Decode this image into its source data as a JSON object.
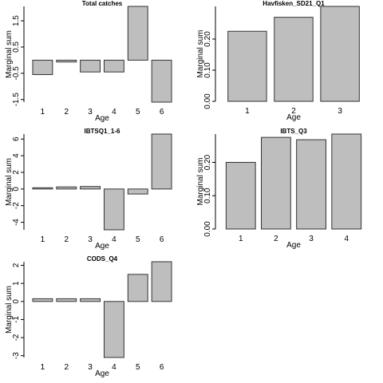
{
  "colors": {
    "bar_fill": "#bebebe",
    "bar_edge": "#333333",
    "axis": "#000000",
    "background": "#ffffff"
  },
  "chart_data": [
    {
      "type": "bar",
      "title": "Total catches",
      "xlabel": "Age",
      "ylabel": "Marginal sum",
      "categories": [
        "1",
        "2",
        "3",
        "4",
        "5",
        "6"
      ],
      "values": [
        -0.55,
        -0.07,
        -0.45,
        -0.45,
        2.05,
        -1.6
      ],
      "yticks": [
        -1.5,
        -0.5,
        0.5,
        1.5
      ],
      "yticklabels": [
        "-1.5",
        "-0.5",
        "0.5",
        "1.5"
      ],
      "ylim": [
        -1.6,
        2.05
      ]
    },
    {
      "type": "bar",
      "title": "Havfisken_SD21_Q1",
      "xlabel": "Age",
      "ylabel": "Marginal sum",
      "categories": [
        "1",
        "2",
        "3"
      ],
      "values": [
        0.225,
        0.27,
        0.305
      ],
      "yticks": [
        0.0,
        0.1,
        0.2
      ],
      "yticklabels": [
        "0.00",
        "0.10",
        "0.20"
      ],
      "ylim": [
        0,
        0.305
      ]
    },
    {
      "type": "bar",
      "title": "IBTSQ1_1-6",
      "xlabel": "Age",
      "ylabel": "Marginal sum",
      "categories": [
        "1",
        "2",
        "3",
        "4",
        "5",
        "6"
      ],
      "values": [
        0.15,
        0.25,
        0.3,
        -4.9,
        -0.6,
        6.6
      ],
      "yticks": [
        -4,
        -2,
        0,
        2,
        4,
        6
      ],
      "yticklabels": [
        "-4",
        "-2",
        "0",
        "2",
        "4",
        "6"
      ],
      "ylim": [
        -4.9,
        6.6
      ]
    },
    {
      "type": "bar",
      "title": "IBTS_Q3",
      "xlabel": "Age",
      "ylabel": "Marginal sum",
      "categories": [
        "1",
        "2",
        "3",
        "4"
      ],
      "values": [
        0.2,
        0.275,
        0.268,
        0.285
      ],
      "yticks": [
        0.0,
        0.1,
        0.2
      ],
      "yticklabels": [
        "0.00",
        "0.10",
        "0.20"
      ],
      "ylim": [
        0,
        0.285
      ]
    },
    {
      "type": "bar",
      "title": "CODS_Q4",
      "xlabel": "Age",
      "ylabel": "Marginal sum",
      "categories": [
        "1",
        "2",
        "3",
        "4",
        "5",
        "6"
      ],
      "values": [
        0.15,
        0.15,
        0.15,
        -3.1,
        1.5,
        2.2
      ],
      "yticks": [
        -3,
        -2,
        -1,
        0,
        1,
        2
      ],
      "yticklabels": [
        "-3",
        "-2",
        "-1",
        "0",
        "1",
        "2"
      ],
      "ylim": [
        -3.1,
        2.2
      ]
    }
  ]
}
